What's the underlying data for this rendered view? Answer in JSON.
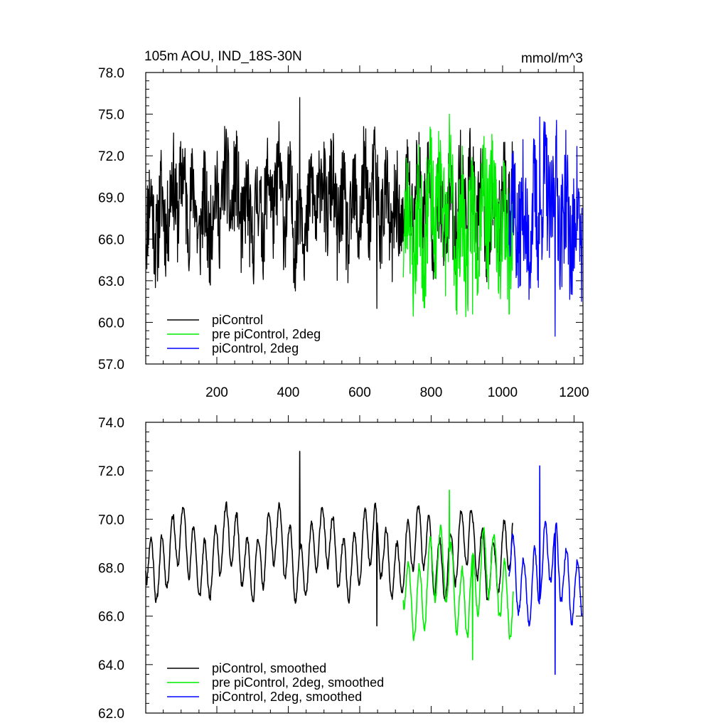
{
  "chart_data": [
    {
      "type": "line",
      "title": "105m AOU, IND_18S-30N",
      "units": "mmol/m^3",
      "xlim": [
        1,
        1225
      ],
      "ylim": [
        57.0,
        78.0
      ],
      "x_ticks": [
        200,
        400,
        600,
        800,
        1000,
        1200
      ],
      "y_ticks": [
        "57.0",
        "60.0",
        "63.0",
        "66.0",
        "69.0",
        "72.0",
        "75.0",
        "78.0"
      ],
      "legend_position": "bottom-left",
      "series": [
        {
          "name": "piControl",
          "color": "#000000",
          "x_range": [
            1,
            1028
          ],
          "mean": 68.4,
          "amp": 1.8,
          "noise": 1.6,
          "min": 61.0,
          "max": 76.2,
          "smooth": false,
          "seed": 11
        },
        {
          "name": "pre piControl, 2deg",
          "color": "#00ee00",
          "x_range": [
            722,
            1030
          ],
          "mean": 67.6,
          "amp": 2.2,
          "noise": 2.0,
          "min": 60.6,
          "max": 75.0,
          "smooth": false,
          "seed": 23
        },
        {
          "name": "piControl, 2deg",
          "color": "#0000ff",
          "x_range": [
            1018,
            1222
          ],
          "mean": 68.0,
          "amp": 2.0,
          "noise": 2.0,
          "min": 59.0,
          "max": 74.8,
          "smooth": false,
          "seed": 37
        }
      ]
    },
    {
      "type": "line",
      "title": "",
      "xlim": [
        1,
        1225
      ],
      "ylim": [
        62.0,
        74.0
      ],
      "x_ticks": [
        200,
        400,
        600,
        800,
        1000,
        1200
      ],
      "show_x_labels": false,
      "y_ticks": [
        "62.0",
        "64.0",
        "66.0",
        "68.0",
        "70.0",
        "72.0",
        "74.0"
      ],
      "legend_position": "bottom-left",
      "series": [
        {
          "name": "piControl, smoothed",
          "color": "#000000",
          "x_range": [
            1,
            1028
          ],
          "mean": 68.6,
          "amp": 1.3,
          "noise": 0.35,
          "min": 65.6,
          "max": 72.8,
          "smooth": true,
          "seed": 11
        },
        {
          "name": "pre piControl, 2deg, smoothed",
          "color": "#00ee00",
          "x_range": [
            722,
            1030
          ],
          "mean": 67.4,
          "amp": 1.5,
          "noise": 0.4,
          "min": 64.2,
          "max": 71.2,
          "smooth": true,
          "seed": 23
        },
        {
          "name": "piControl, 2deg, smoothed",
          "color": "#0000ff",
          "x_range": [
            1018,
            1222
          ],
          "mean": 67.8,
          "amp": 1.4,
          "noise": 0.4,
          "min": 63.6,
          "max": 72.2,
          "smooth": true,
          "seed": 37
        }
      ]
    }
  ]
}
